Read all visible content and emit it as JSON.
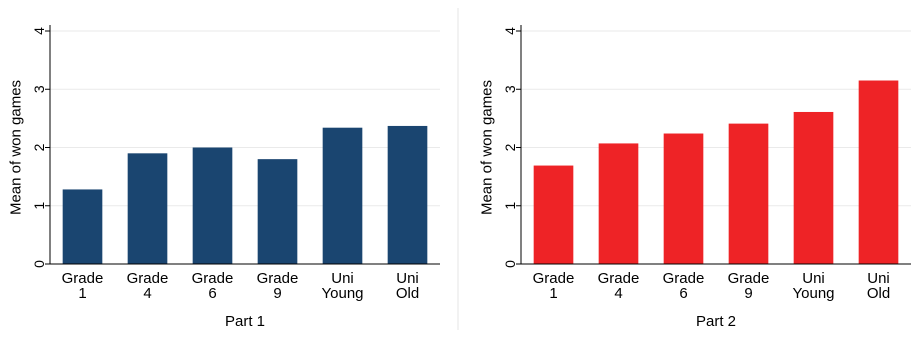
{
  "chart_data": [
    {
      "type": "bar",
      "categories": [
        [
          "Grade",
          "1"
        ],
        [
          "Grade",
          "4"
        ],
        [
          "Grade",
          "6"
        ],
        [
          "Grade",
          "9"
        ],
        [
          "Uni",
          "Young"
        ],
        [
          "Uni",
          "Old"
        ]
      ],
      "values": [
        1.28,
        1.9,
        2.0,
        1.8,
        2.34,
        2.37
      ],
      "ylabel": "Mean of won games",
      "xlabel": "Part 1",
      "ylim": [
        0,
        4
      ],
      "yticks": [
        "0",
        "1",
        "2",
        "3",
        "4"
      ],
      "color": "#1a4570",
      "grid": true
    },
    {
      "type": "bar",
      "categories": [
        [
          "Grade",
          "1"
        ],
        [
          "Grade",
          "4"
        ],
        [
          "Grade",
          "6"
        ],
        [
          "Grade",
          "9"
        ],
        [
          "Uni",
          "Young"
        ],
        [
          "Uni",
          "Old"
        ]
      ],
      "values": [
        1.69,
        2.07,
        2.24,
        2.41,
        2.61,
        3.15
      ],
      "ylabel": "Mean of won games",
      "xlabel": "Part 2",
      "ylim": [
        0,
        4
      ],
      "yticks": [
        "0",
        "1",
        "2",
        "3",
        "4"
      ],
      "color": "#ee2326",
      "grid": true
    }
  ]
}
